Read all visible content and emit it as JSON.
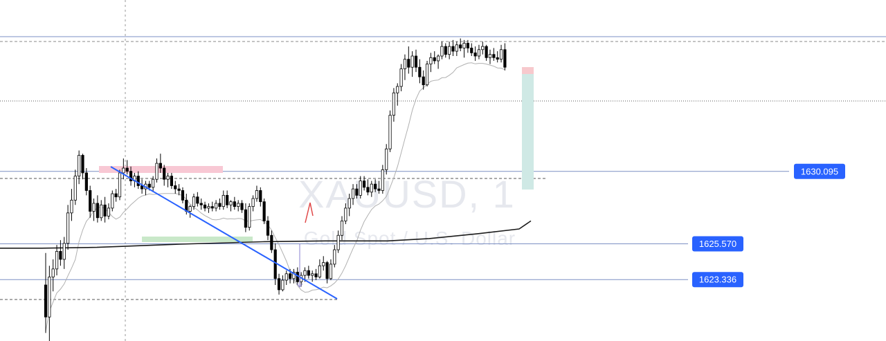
{
  "watermark": {
    "symbol": "XAUUSD, 1",
    "description": "Gold Spot / U.S. Dollar"
  },
  "colors": {
    "up": "#ffffff",
    "down": "#000000",
    "wick": "#000000",
    "trendline": "#2962ff",
    "label_bg": "#2962ff",
    "hline": "#7b8fc4",
    "ma_fast": "#b0b0b0",
    "ma_slow": "#1a1a1a",
    "zone_red": "#f8c8d4",
    "zone_green": "#c9e8c9",
    "position_target": "#cfe9e5",
    "position_stop": "#f7c9cd",
    "arrow": "#e04848"
  },
  "chart_data": {
    "type": "candlestick",
    "symbol": "XAUUSD",
    "timeframe": "1",
    "price_labels": [
      {
        "name": "level-1630",
        "value": 1630.095,
        "text": "1630.095"
      },
      {
        "name": "level-1625",
        "value": 1625.57,
        "text": "1625.570"
      },
      {
        "name": "level-1623",
        "value": 1623.336,
        "text": "1623.336"
      }
    ],
    "ylim": [
      1619.5,
      1640.8
    ],
    "x_count": 130,
    "candles_ohlc": [
      [
        1623.0,
        1625.0,
        1620.0,
        1621.0
      ],
      [
        1621.0,
        1624.2,
        1619.5,
        1623.5
      ],
      [
        1623.5,
        1624.6,
        1622.6,
        1624.0
      ],
      [
        1624.0,
        1625.5,
        1623.6,
        1625.1
      ],
      [
        1625.1,
        1625.8,
        1624.2,
        1624.6
      ],
      [
        1624.6,
        1626.0,
        1624.0,
        1625.6
      ],
      [
        1625.6,
        1628.0,
        1625.2,
        1627.5
      ],
      [
        1627.5,
        1629.0,
        1627.0,
        1628.3
      ],
      [
        1628.3,
        1630.2,
        1628.0,
        1629.8
      ],
      [
        1629.8,
        1631.4,
        1629.3,
        1631.1
      ],
      [
        1631.1,
        1631.2,
        1629.6,
        1630.0
      ],
      [
        1630.0,
        1630.3,
        1628.6,
        1628.9
      ],
      [
        1628.9,
        1629.2,
        1627.2,
        1627.6
      ],
      [
        1627.6,
        1628.4,
        1627.0,
        1628.1
      ],
      [
        1628.1,
        1628.6,
        1626.9,
        1627.2
      ],
      [
        1627.2,
        1628.3,
        1627.0,
        1628.0
      ],
      [
        1628.0,
        1628.5,
        1626.9,
        1627.3
      ],
      [
        1627.3,
        1628.1,
        1627.1,
        1627.8
      ],
      [
        1627.8,
        1628.9,
        1627.6,
        1628.7
      ],
      [
        1628.7,
        1629.0,
        1628.2,
        1628.5
      ],
      [
        1628.5,
        1630.2,
        1628.3,
        1630.0
      ],
      [
        1630.0,
        1630.9,
        1629.6,
        1630.3
      ],
      [
        1630.3,
        1630.8,
        1629.9,
        1630.1
      ],
      [
        1630.1,
        1630.4,
        1629.2,
        1629.5
      ],
      [
        1629.5,
        1630.0,
        1629.1,
        1629.8
      ],
      [
        1629.8,
        1630.1,
        1629.0,
        1629.2
      ],
      [
        1629.2,
        1629.6,
        1628.7,
        1629.0
      ],
      [
        1629.0,
        1629.5,
        1628.6,
        1629.3
      ],
      [
        1629.3,
        1629.5,
        1628.9,
        1629.1
      ],
      [
        1629.1,
        1629.8,
        1628.8,
        1629.6
      ],
      [
        1629.6,
        1630.9,
        1629.4,
        1630.6
      ],
      [
        1630.6,
        1631.2,
        1630.0,
        1630.3
      ],
      [
        1630.3,
        1630.5,
        1629.2,
        1629.6
      ],
      [
        1629.6,
        1630.0,
        1629.1,
        1629.8
      ],
      [
        1629.8,
        1630.0,
        1629.0,
        1629.2
      ],
      [
        1629.2,
        1629.5,
        1628.7,
        1629.0
      ],
      [
        1629.0,
        1629.3,
        1628.6,
        1628.9
      ],
      [
        1628.9,
        1629.1,
        1628.1,
        1628.3
      ],
      [
        1628.3,
        1628.7,
        1627.4,
        1627.6
      ],
      [
        1627.6,
        1628.0,
        1627.2,
        1627.9
      ],
      [
        1627.9,
        1628.7,
        1627.7,
        1628.5
      ],
      [
        1628.5,
        1628.8,
        1627.9,
        1628.1
      ],
      [
        1628.1,
        1628.4,
        1627.7,
        1628.0
      ],
      [
        1628.0,
        1628.2,
        1627.6,
        1627.8
      ],
      [
        1627.8,
        1628.1,
        1627.5,
        1627.9
      ],
      [
        1627.9,
        1628.2,
        1627.6,
        1627.8
      ],
      [
        1627.8,
        1628.3,
        1627.6,
        1628.1
      ],
      [
        1628.1,
        1628.4,
        1627.7,
        1627.9
      ],
      [
        1627.9,
        1628.9,
        1627.7,
        1628.6
      ],
      [
        1628.6,
        1628.9,
        1627.8,
        1628.0
      ],
      [
        1628.0,
        1628.3,
        1627.6,
        1628.2
      ],
      [
        1628.2,
        1628.5,
        1627.7,
        1627.9
      ],
      [
        1627.9,
        1628.3,
        1627.6,
        1628.1
      ],
      [
        1628.1,
        1628.3,
        1627.5,
        1627.7
      ],
      [
        1627.7,
        1628.1,
        1626.3,
        1626.6
      ],
      [
        1626.6,
        1628.1,
        1626.4,
        1627.9
      ],
      [
        1627.9,
        1628.6,
        1627.6,
        1628.4
      ],
      [
        1628.4,
        1629.2,
        1628.2,
        1628.9
      ],
      [
        1628.9,
        1629.1,
        1627.9,
        1628.2
      ],
      [
        1628.2,
        1628.4,
        1626.8,
        1627.0
      ],
      [
        1627.0,
        1627.3,
        1625.8,
        1626.1
      ],
      [
        1626.1,
        1626.4,
        1625.0,
        1625.2
      ],
      [
        1625.2,
        1625.6,
        1623.0,
        1623.4
      ],
      [
        1623.4,
        1623.7,
        1622.4,
        1622.7
      ],
      [
        1622.7,
        1623.6,
        1622.6,
        1623.3
      ],
      [
        1623.3,
        1623.9,
        1623.0,
        1623.7
      ],
      [
        1623.7,
        1624.0,
        1623.1,
        1623.4
      ],
      [
        1623.4,
        1624.0,
        1623.1,
        1623.8
      ],
      [
        1623.8,
        1624.1,
        1623.0,
        1623.2
      ],
      [
        1623.2,
        1623.8,
        1622.9,
        1623.6
      ],
      [
        1623.6,
        1624.1,
        1623.2,
        1623.9
      ],
      [
        1623.9,
        1624.2,
        1623.4,
        1623.6
      ],
      [
        1623.6,
        1623.9,
        1623.2,
        1623.7
      ],
      [
        1623.7,
        1624.0,
        1623.3,
        1623.5
      ],
      [
        1623.5,
        1624.6,
        1623.4,
        1624.2
      ],
      [
        1624.2,
        1624.8,
        1623.9,
        1624.4
      ],
      [
        1624.4,
        1624.5,
        1623.1,
        1623.4
      ],
      [
        1623.4,
        1624.6,
        1623.3,
        1624.3
      ],
      [
        1624.3,
        1625.5,
        1624.1,
        1625.2
      ],
      [
        1625.2,
        1626.4,
        1625.0,
        1626.1
      ],
      [
        1626.1,
        1627.3,
        1625.8,
        1627.0
      ],
      [
        1627.0,
        1628.1,
        1626.8,
        1627.8
      ],
      [
        1627.8,
        1628.7,
        1627.3,
        1628.4
      ],
      [
        1628.4,
        1629.3,
        1628.0,
        1629.0
      ],
      [
        1629.0,
        1629.3,
        1628.4,
        1628.6
      ],
      [
        1628.6,
        1629.8,
        1628.4,
        1629.5
      ],
      [
        1629.5,
        1629.8,
        1628.9,
        1629.1
      ],
      [
        1629.1,
        1629.6,
        1628.6,
        1628.8
      ],
      [
        1628.8,
        1629.5,
        1628.5,
        1629.3
      ],
      [
        1629.3,
        1629.6,
        1628.8,
        1629.0
      ],
      [
        1629.0,
        1629.5,
        1628.7,
        1628.9
      ],
      [
        1628.9,
        1630.5,
        1628.7,
        1630.2
      ],
      [
        1630.2,
        1631.8,
        1629.9,
        1631.5
      ],
      [
        1631.5,
        1633.9,
        1631.3,
        1633.6
      ],
      [
        1633.6,
        1635.3,
        1633.2,
        1635.0
      ],
      [
        1635.0,
        1635.6,
        1634.2,
        1635.4
      ],
      [
        1635.4,
        1636.8,
        1635.1,
        1636.5
      ],
      [
        1636.5,
        1637.4,
        1635.8,
        1637.1
      ],
      [
        1637.1,
        1637.9,
        1636.2,
        1636.6
      ],
      [
        1636.6,
        1637.6,
        1636.0,
        1637.3
      ],
      [
        1637.3,
        1637.7,
        1636.3,
        1636.6
      ],
      [
        1636.6,
        1637.1,
        1635.6,
        1636.0
      ],
      [
        1636.0,
        1636.4,
        1635.2,
        1635.5
      ],
      [
        1635.5,
        1637.0,
        1635.4,
        1636.8
      ],
      [
        1636.8,
        1637.5,
        1636.3,
        1637.2
      ],
      [
        1637.2,
        1637.6,
        1636.8,
        1637.0
      ],
      [
        1637.0,
        1637.4,
        1636.5,
        1637.3
      ],
      [
        1637.3,
        1638.2,
        1637.1,
        1637.9
      ],
      [
        1637.9,
        1638.1,
        1637.2,
        1637.4
      ],
      [
        1637.4,
        1638.2,
        1637.1,
        1637.9
      ],
      [
        1637.9,
        1638.3,
        1637.3,
        1637.6
      ],
      [
        1637.6,
        1638.2,
        1637.3,
        1638.0
      ],
      [
        1638.0,
        1638.4,
        1637.6,
        1637.8
      ],
      [
        1637.8,
        1638.3,
        1637.2,
        1638.1
      ],
      [
        1638.1,
        1638.3,
        1637.5,
        1637.8
      ],
      [
        1637.8,
        1638.1,
        1637.3,
        1637.5
      ],
      [
        1637.5,
        1637.9,
        1637.0,
        1637.3
      ],
      [
        1637.3,
        1638.0,
        1637.1,
        1637.7
      ],
      [
        1637.7,
        1638.2,
        1637.4,
        1637.9
      ],
      [
        1637.9,
        1638.0,
        1637.0,
        1637.2
      ],
      [
        1637.2,
        1637.7,
        1636.8,
        1637.4
      ],
      [
        1637.4,
        1637.8,
        1637.0,
        1637.2
      ],
      [
        1637.2,
        1637.6,
        1636.9,
        1637.1
      ],
      [
        1637.1,
        1638.0,
        1636.9,
        1637.7
      ],
      [
        1637.7,
        1638.1,
        1636.4,
        1636.6
      ]
    ]
  }
}
